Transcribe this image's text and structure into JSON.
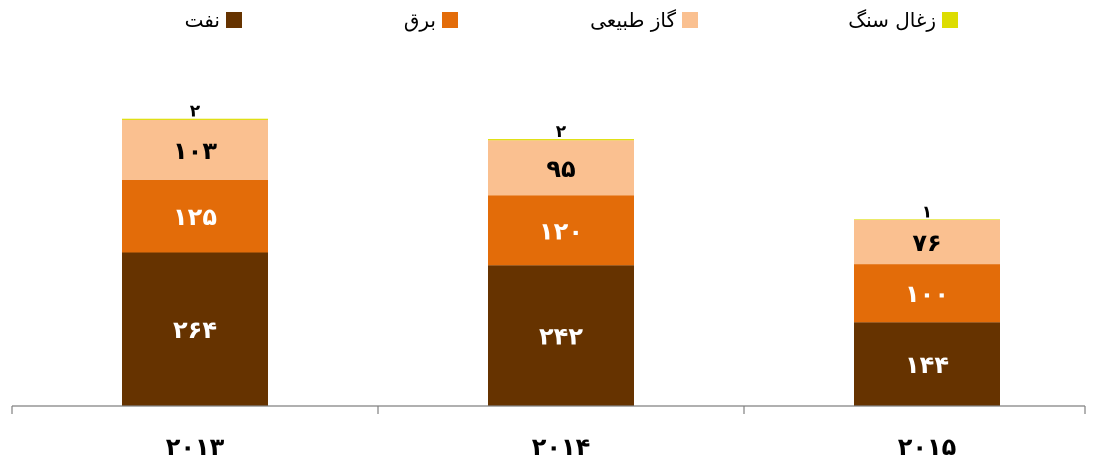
{
  "chart_data": {
    "type": "bar",
    "stacked": true,
    "categories": [
      "۲۰۱۳",
      "۲۰۱۴",
      "۲۰۱۵"
    ],
    "series": [
      {
        "name": "نفت",
        "color": "#663300",
        "values": [
          264,
          242,
          144
        ],
        "labels": [
          "۲۶۴",
          "۲۴۲",
          "۱۴۴"
        ],
        "label_color": "#ffffff"
      },
      {
        "name": "برق",
        "color": "#e36c09",
        "values": [
          125,
          120,
          100
        ],
        "labels": [
          "۱۲۵",
          "۱۲۰",
          "۱۰۰"
        ],
        "label_color": "#ffffff"
      },
      {
        "name": "گاز طبیعی",
        "color": "#fac090",
        "values": [
          103,
          95,
          76
        ],
        "labels": [
          "۱۰۳",
          "۹۵",
          "۷۶"
        ],
        "label_color": "#000000"
      },
      {
        "name": "زغال سنگ",
        "color": "#dddd00",
        "values": [
          2,
          2,
          1
        ],
        "labels": [
          "۲",
          "۲",
          "۱"
        ],
        "label_color": "#000000"
      }
    ],
    "legend_order": [
      "زغال سنگ",
      "گاز طبیعی",
      "برق",
      "نفت"
    ],
    "legend_position": "top",
    "grid": false,
    "ylim": [
      0,
      530
    ]
  }
}
